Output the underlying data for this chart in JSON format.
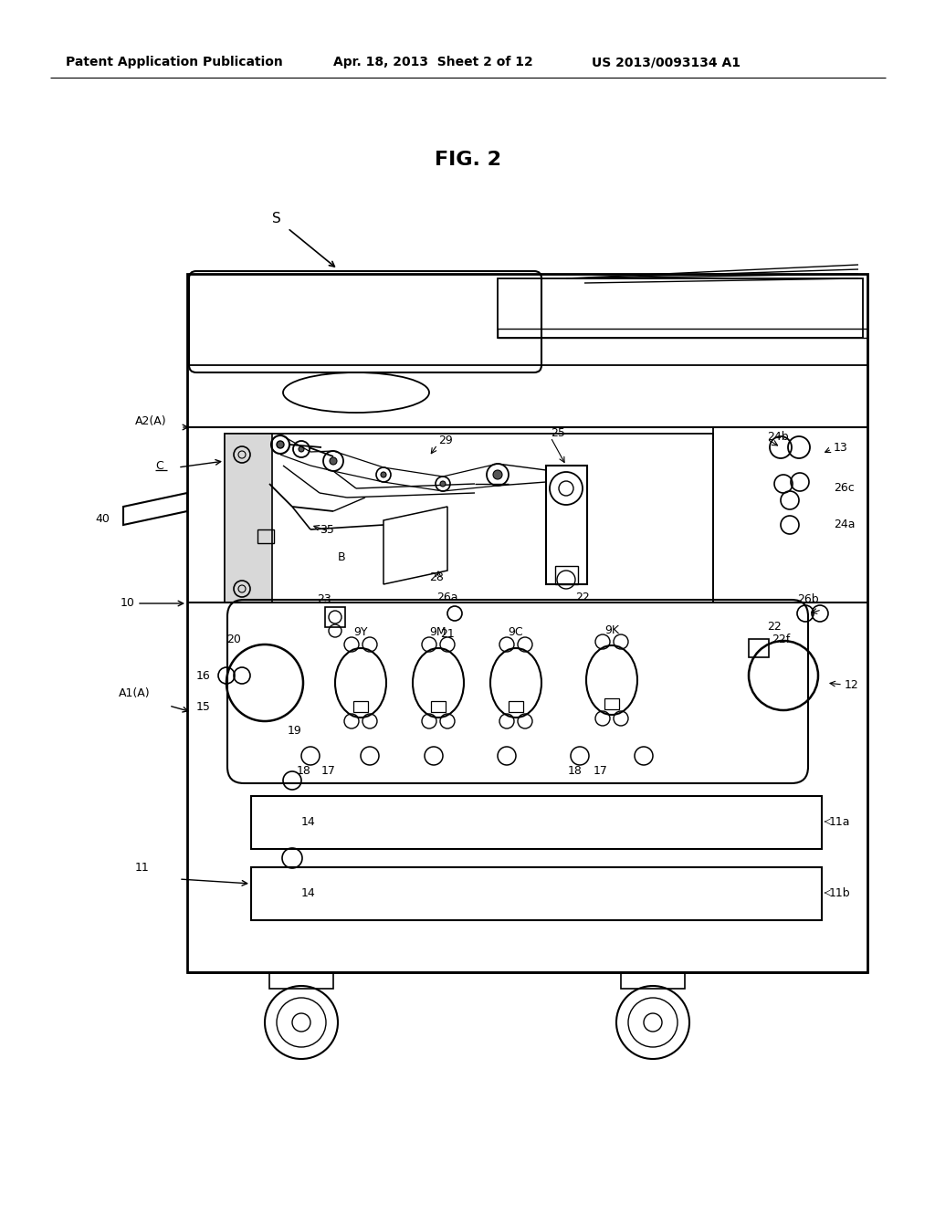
{
  "bg_color": "#ffffff",
  "header_left": "Patent Application Publication",
  "header_mid": "Apr. 18, 2013  Sheet 2 of 12",
  "header_right": "US 2013/0093134 A1",
  "fig_title": "FIG. 2"
}
